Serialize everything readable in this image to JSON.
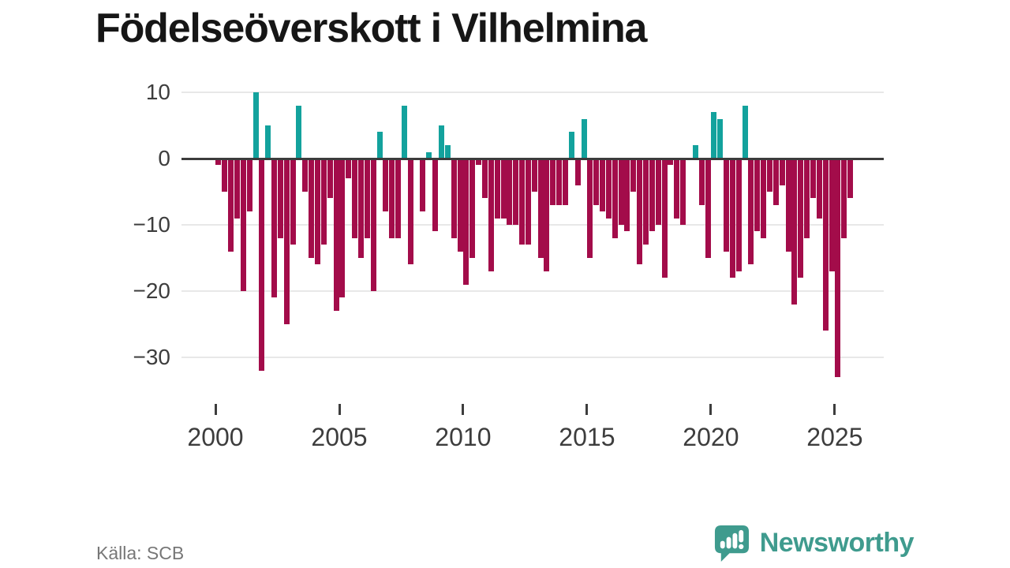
{
  "title": "Födelseöverskott i Vilhelmina",
  "source": {
    "label": "Källa: SCB"
  },
  "branding": {
    "name": "Newsworthy",
    "logo_icon": "speech-bubble-bar-chart",
    "color": "#3f9b8e"
  },
  "chart_data": {
    "type": "bar",
    "title": "Födelseöverskott i Vilhelmina",
    "frequency": "quarterly",
    "start_period": "2000Q1",
    "end_period": "2025Q3",
    "values": [
      -1,
      -5,
      -14,
      -9,
      -20,
      -8,
      10,
      -32,
      5,
      -21,
      -12,
      -25,
      -13,
      8,
      -5,
      -15,
      -16,
      -13,
      -6,
      -23,
      -21,
      -3,
      -12,
      -15,
      -12,
      -20,
      4,
      -8,
      -12,
      -12,
      8,
      -16,
      0,
      -8,
      1,
      -11,
      5,
      2,
      -12,
      -14,
      -19,
      -15,
      -1,
      -6,
      -17,
      -9,
      -9,
      -10,
      -10,
      -13,
      -13,
      -5,
      -15,
      -17,
      -7,
      -7,
      -7,
      4,
      -4,
      6,
      -15,
      -7,
      -8,
      -9,
      -12,
      -10,
      -11,
      -5,
      -16,
      -13,
      -11,
      -10,
      -18,
      -1,
      -9,
      -10,
      0,
      2,
      -7,
      -15,
      7,
      6,
      -14,
      -18,
      -17,
      8,
      -16,
      -11,
      -12,
      -5,
      -7,
      -4,
      -14,
      -22,
      -18,
      -12,
      -6,
      -9,
      -26,
      -17,
      -33,
      -12,
      -6
    ],
    "x_tick_years": [
      2000,
      2005,
      2010,
      2015,
      2020,
      2025
    ],
    "x_tick_labels": [
      "2000",
      "2005",
      "2010",
      "2015",
      "2020",
      "2025"
    ],
    "y_tick_values": [
      10,
      0,
      -10,
      -20,
      -30
    ],
    "y_tick_labels": [
      "10",
      "0",
      "−10",
      "−20",
      "−30"
    ],
    "ylim": [
      -35,
      12
    ],
    "grid": true,
    "legend": false,
    "colors": {
      "positive": "#13a29d",
      "negative": "#a30c4a"
    }
  }
}
